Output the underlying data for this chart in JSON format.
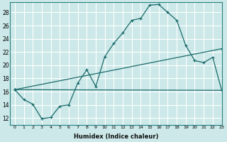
{
  "xlabel": "Humidex (Indice chaleur)",
  "background_color": "#cce8e8",
  "grid_color": "#ffffff",
  "line_color": "#1a6b6b",
  "xlim": [
    -0.5,
    23
  ],
  "ylim": [
    11,
    29.5
  ],
  "yticks": [
    12,
    14,
    16,
    18,
    20,
    22,
    24,
    26,
    28
  ],
  "xticks": [
    0,
    1,
    2,
    3,
    4,
    5,
    6,
    7,
    8,
    9,
    10,
    11,
    12,
    13,
    14,
    15,
    16,
    17,
    18,
    19,
    20,
    21,
    22,
    23
  ],
  "line1_x": [
    0,
    1,
    2,
    3,
    4,
    5,
    6,
    7,
    8,
    9,
    10,
    11,
    12,
    13,
    14,
    15,
    16,
    17,
    18,
    19,
    20,
    21,
    22,
    23
  ],
  "line1_y": [
    16.3,
    14.8,
    14.1,
    11.9,
    12.1,
    13.8,
    14.0,
    17.3,
    19.3,
    16.8,
    21.3,
    23.3,
    24.9,
    26.8,
    27.1,
    29.1,
    29.2,
    28.0,
    26.8,
    23.0,
    20.7,
    20.4,
    21.2,
    16.2
  ],
  "line2_x": [
    0,
    23
  ],
  "line2_y": [
    16.3,
    22.5
  ],
  "line3_x": [
    0,
    23
  ],
  "line3_y": [
    16.3,
    16.2
  ]
}
